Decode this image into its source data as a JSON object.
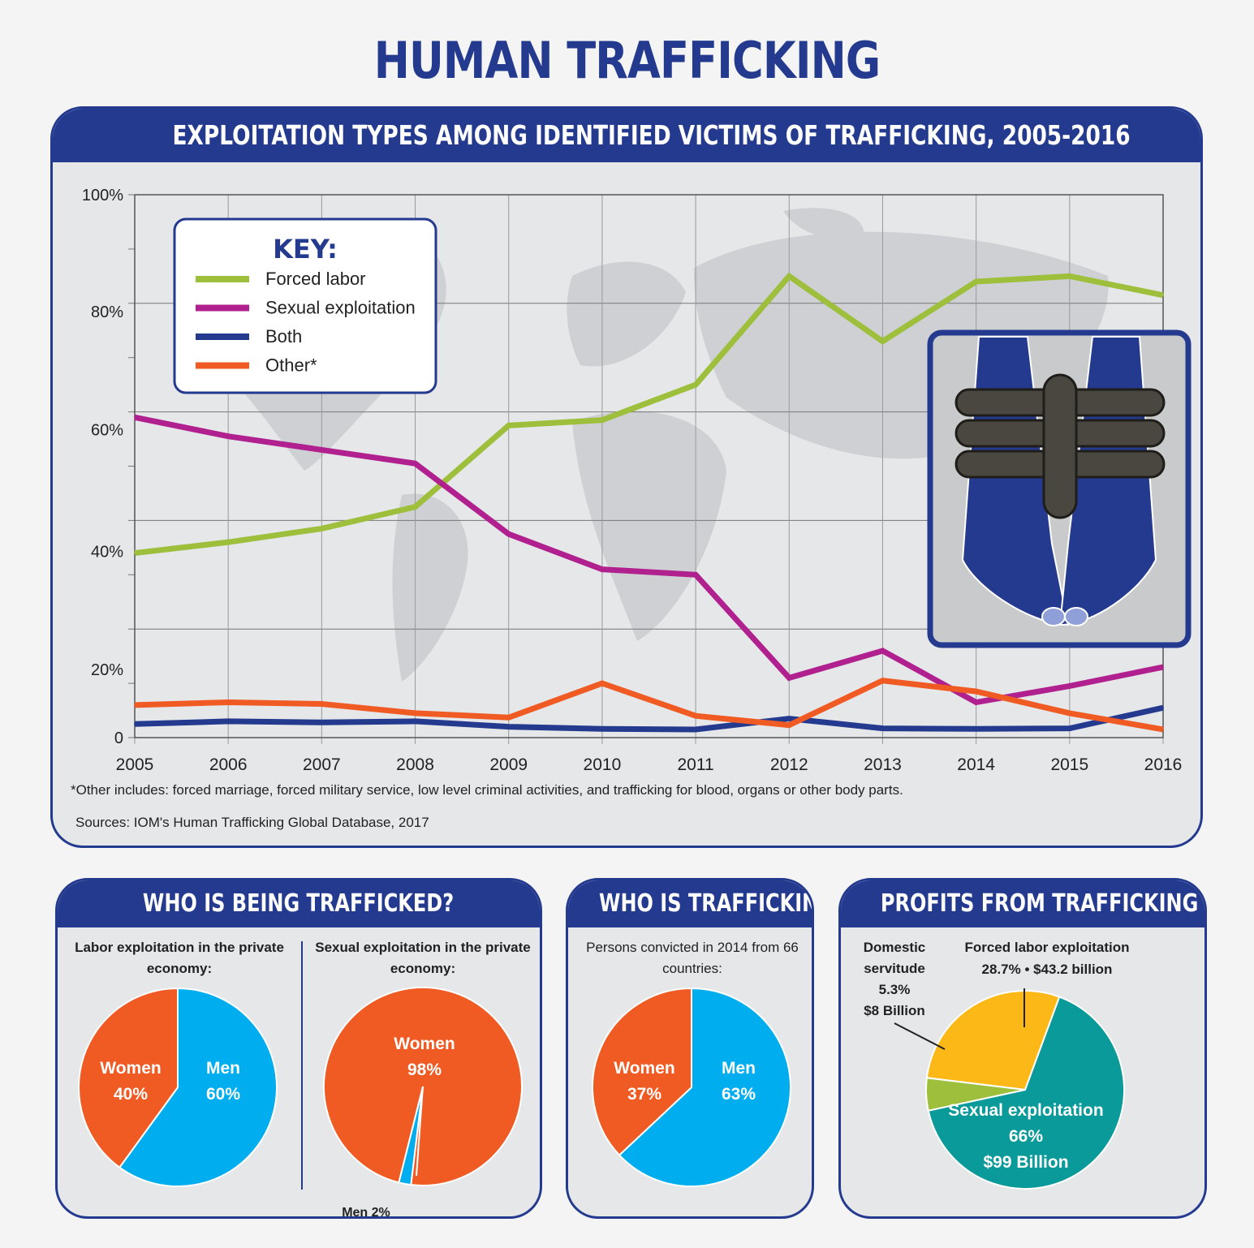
{
  "title": "HUMAN TRAFFICKING",
  "top_panel": {
    "heading": "EXPLOITATION TYPES AMONG IDENTIFIED VICTIMS OF TRAFFICKING, 2005-2016",
    "key_title": "KEY:",
    "footnote": "*Other includes: forced marriage, forced military service, low level criminal activities, and trafficking for blood, organs or other body parts.",
    "sources": "Sources: IOM's Human Trafficking Global Database, 2017"
  },
  "colors": {
    "navy": "#243a8f",
    "forced_labor": "#9dbf3b",
    "sexual": "#b0208f",
    "both": "#243a8f",
    "other": "#f05a23",
    "men_blue": "#00aeef",
    "women_orange": "#f05a23",
    "gold": "#fbb817",
    "teal": "#0a9a9a",
    "green": "#9dbf3b"
  },
  "chart_data": [
    {
      "type": "line",
      "x": [
        2005,
        2006,
        2007,
        2008,
        2009,
        2010,
        2011,
        2012,
        2013,
        2014,
        2015,
        2016
      ],
      "y_tick_labels": [
        "100%",
        "80%",
        "60%",
        "40%",
        "20%",
        "0"
      ],
      "ylim": [
        0,
        100
      ],
      "grid": true,
      "legend": "top-left",
      "series": [
        {
          "name": "Forced labor",
          "values": [
            34,
            36,
            38.5,
            42.5,
            57.5,
            58.5,
            65,
            85,
            73,
            84,
            85,
            81.5
          ]
        },
        {
          "name": "Sexual exploitation",
          "values": [
            59,
            55.5,
            53,
            50.5,
            37.5,
            31,
            30,
            11,
            16,
            6.5,
            9.5,
            13
          ]
        },
        {
          "name": "Both",
          "values": [
            2.5,
            3,
            2.8,
            3,
            2,
            1.6,
            1.5,
            3.5,
            1.7,
            1.6,
            1.7,
            5.5
          ]
        },
        {
          "name": "Other*",
          "values": [
            6,
            6.5,
            6.2,
            4.5,
            3.7,
            10,
            4,
            2.3,
            10.5,
            8.5,
            4.5,
            1.5
          ]
        }
      ]
    },
    {
      "type": "pie",
      "subtitle": "Labor exploitation in the private economy:",
      "slices": [
        {
          "label": "Women",
          "pct_label": "40%",
          "value": 40,
          "color": "#f05a23"
        },
        {
          "label": "Men",
          "pct_label": "60%",
          "value": 60,
          "color": "#00aeef"
        }
      ]
    },
    {
      "type": "pie",
      "subtitle": "Sexual exploitation in the private economy:",
      "slices": [
        {
          "label": "Women",
          "pct_label": "98%",
          "value": 98,
          "color": "#f05a23"
        },
        {
          "label": "Men 2%",
          "value": 2,
          "color": "#00aeef"
        }
      ]
    },
    {
      "type": "pie",
      "subtitle": "Persons convicted in 2014 from 66 countries:",
      "slices": [
        {
          "label": "Women",
          "pct_label": "37%",
          "value": 37,
          "color": "#f05a23"
        },
        {
          "label": "Men",
          "pct_label": "63%",
          "value": 63,
          "color": "#00aeef"
        }
      ]
    },
    {
      "type": "pie",
      "slices": [
        {
          "label": "Forced labor exploitation",
          "detail": "28.7% • $43.2 billion",
          "value": 28.7,
          "color": "#fbb817"
        },
        {
          "label": "Sexual exploitation",
          "pct_label": "66%",
          "detail": "$99 Billion",
          "value": 66,
          "color": "#0a9a9a"
        },
        {
          "label": "Domestic",
          "label2": "servitude",
          "pct_label": "5.3%",
          "detail": "$8 Billion",
          "value": 5.3,
          "color": "#9dbf3b"
        }
      ]
    }
  ],
  "panels": {
    "who_trafficked": "WHO IS BEING TRAFFICKED?",
    "who_trafficking": "WHO IS TRAFFICKING?",
    "profits": "PROFITS FROM TRAFFICKING"
  }
}
